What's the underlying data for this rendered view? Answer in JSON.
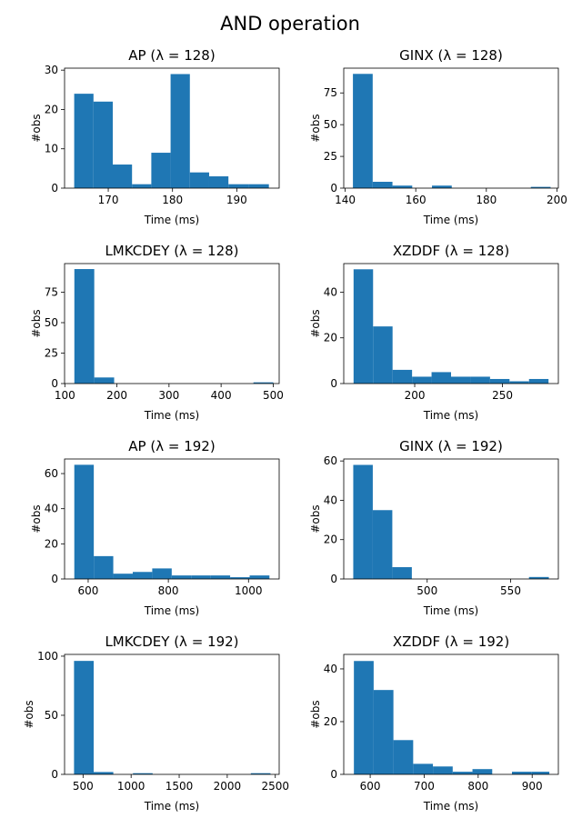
{
  "figure": {
    "title": "AND operation"
  },
  "chart_data": [
    {
      "type": "histogram",
      "title": "AP (λ = 128)",
      "xlabel": "Time (ms)",
      "ylabel": "#obs",
      "xlim": [
        163.2,
        196.6
      ],
      "ylim": [
        0,
        30.5
      ],
      "xticks": [
        170,
        180,
        190
      ],
      "yticks": [
        0,
        10,
        20,
        30
      ],
      "bin_edges": [
        164.7,
        167.7,
        170.7,
        173.7,
        176.7,
        179.7,
        182.7,
        185.7,
        188.7,
        191.8,
        195.0
      ],
      "counts": [
        24,
        22,
        6,
        1,
        9,
        29,
        4,
        3,
        1,
        1
      ],
      "color": "#1f77b4"
    },
    {
      "type": "histogram",
      "title": "GINX (λ = 128)",
      "xlabel": "Time (ms)",
      "ylabel": "#obs",
      "xlim": [
        139.6,
        200.4
      ],
      "ylim": [
        0,
        94.5
      ],
      "xticks": [
        140,
        160,
        180,
        200
      ],
      "yticks": [
        0,
        25,
        50,
        75
      ],
      "bin_edges": [
        142.2,
        147.8,
        153.4,
        159.0,
        164.6,
        170.2,
        175.8,
        181.4,
        187.0,
        192.6,
        198.2
      ],
      "counts": [
        90,
        5,
        2,
        0,
        2,
        0,
        0,
        0,
        0,
        1
      ],
      "color": "#1f77b4"
    },
    {
      "type": "histogram",
      "title": "LMKCDEY (λ = 128)",
      "xlabel": "Time (ms)",
      "ylabel": "#obs",
      "xlim": [
        99.5,
        511.5
      ],
      "ylim": [
        0,
        98.5
      ],
      "xticks": [
        100,
        200,
        300,
        400,
        500
      ],
      "yticks": [
        0,
        25,
        50,
        75
      ],
      "bin_edges": [
        118.3,
        156.5,
        194.7,
        232.9,
        271.1,
        309.3,
        347.5,
        385.7,
        423.9,
        462.1,
        500.3
      ],
      "counts": [
        94,
        5,
        0,
        0,
        0,
        0,
        0,
        0,
        0,
        1
      ],
      "color": "#1f77b4"
    },
    {
      "type": "histogram",
      "title": "XZDDF (λ = 128)",
      "xlabel": "Time (ms)",
      "ylabel": "#obs",
      "xlim": [
        159.6,
        281.8
      ],
      "ylim": [
        0,
        52.5
      ],
      "xticks": [
        200,
        250
      ],
      "yticks": [
        0,
        20,
        40
      ],
      "bin_edges": [
        165.2,
        176.3,
        187.4,
        198.5,
        209.6,
        220.7,
        231.8,
        242.9,
        254.0,
        265.1,
        276.2
      ],
      "counts": [
        50,
        25,
        6,
        3,
        5,
        3,
        3,
        2,
        1,
        2
      ],
      "color": "#1f77b4"
    },
    {
      "type": "histogram",
      "title": "AP (λ = 192)",
      "xlabel": "Time (ms)",
      "ylabel": "#obs",
      "xlim": [
        541.1,
        1076.5
      ],
      "ylim": [
        0,
        68.3
      ],
      "xticks": [
        600,
        800,
        1000
      ],
      "yticks": [
        0,
        20,
        40,
        60
      ],
      "bin_edges": [
        565.4,
        614.0,
        662.6,
        711.2,
        759.8,
        808.4,
        857.0,
        905.6,
        954.2,
        1002.8,
        1052.2
      ],
      "counts": [
        65,
        13,
        3,
        4,
        6,
        2,
        2,
        2,
        1,
        2
      ],
      "color": "#1f77b4"
    },
    {
      "type": "histogram",
      "title": "GINX (λ = 192)",
      "xlabel": "Time (ms)",
      "ylabel": "#obs",
      "xlim": [
        450.0,
        578.6
      ],
      "ylim": [
        0,
        61.0
      ],
      "xticks": [
        500,
        550
      ],
      "yticks": [
        0,
        20,
        40,
        60
      ],
      "bin_edges": [
        455.7,
        467.4,
        479.1,
        490.8,
        502.5,
        514.2,
        525.9,
        537.6,
        549.3,
        561.0,
        572.9
      ],
      "counts": [
        58,
        35,
        6,
        0,
        0,
        0,
        0,
        0,
        0,
        1
      ],
      "color": "#1f77b4"
    },
    {
      "type": "histogram",
      "title": "LMKCDEY (λ = 192)",
      "xlabel": "Time (ms)",
      "ylabel": "#obs",
      "xlim": [
        307.6,
        2540.4
      ],
      "ylim": [
        0,
        101.5
      ],
      "xticks": [
        500,
        1000,
        1500,
        2000,
        2500
      ],
      "yticks": [
        0,
        50,
        100
      ],
      "bin_edges": [
        406.0,
        610.4,
        814.8,
        1019.2,
        1223.6,
        1428.0,
        1632.4,
        1836.8,
        2041.2,
        2245.6,
        2450.0
      ],
      "counts": [
        96,
        2,
        0,
        1,
        0,
        0,
        0,
        0,
        0,
        1
      ],
      "color": "#1f77b4"
    },
    {
      "type": "histogram",
      "title": "XZDDF (λ = 192)",
      "xlabel": "Time (ms)",
      "ylabel": "#obs",
      "xlim": [
        551.0,
        948.5
      ],
      "ylim": [
        0,
        45.5
      ],
      "xticks": [
        600,
        700,
        800,
        900
      ],
      "yticks": [
        0,
        20,
        40
      ],
      "bin_edges": [
        569.8,
        606.4,
        643.0,
        679.6,
        716.2,
        752.8,
        789.4,
        826.0,
        862.6,
        899.2,
        931.8
      ],
      "counts": [
        43,
        32,
        13,
        4,
        3,
        1,
        2,
        0,
        1,
        1
      ],
      "color": "#1f77b4"
    }
  ]
}
